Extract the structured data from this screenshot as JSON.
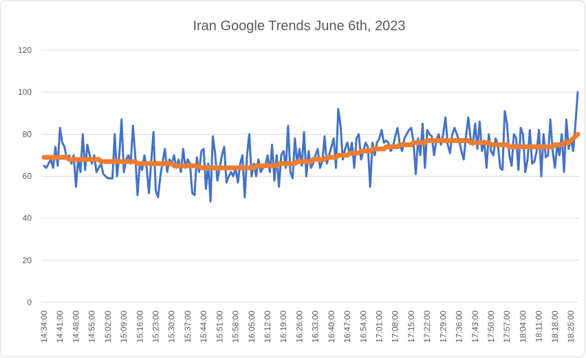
{
  "chart_data": {
    "type": "line",
    "title": "Iran Google Trends June 6th, 2023",
    "categories": [
      "14:34:00",
      null,
      null,
      null,
      null,
      null,
      null,
      "14:41:00",
      null,
      null,
      null,
      null,
      null,
      null,
      "14:48:00",
      null,
      null,
      null,
      null,
      null,
      null,
      "14:55:00",
      null,
      null,
      null,
      null,
      null,
      null,
      "15:02:00",
      null,
      null,
      null,
      null,
      null,
      null,
      "15:09:00",
      null,
      null,
      null,
      null,
      null,
      null,
      "15:16:00",
      null,
      null,
      null,
      null,
      null,
      null,
      "15:23:00",
      null,
      null,
      null,
      null,
      null,
      null,
      "15:30:00",
      null,
      null,
      null,
      null,
      null,
      null,
      "15:37:00",
      null,
      null,
      null,
      null,
      null,
      null,
      "15:44:00",
      null,
      null,
      null,
      null,
      null,
      null,
      "15:51:00",
      null,
      null,
      null,
      null,
      null,
      null,
      "15:58:00",
      null,
      null,
      null,
      null,
      null,
      null,
      "16:05:00",
      null,
      null,
      null,
      null,
      null,
      null,
      "16:12:00",
      null,
      null,
      null,
      null,
      null,
      null,
      "16:19:00",
      null,
      null,
      null,
      null,
      null,
      null,
      "16:26:00",
      null,
      null,
      null,
      null,
      null,
      null,
      "16:33:00",
      null,
      null,
      null,
      null,
      null,
      null,
      "16:40:00",
      null,
      null,
      null,
      null,
      null,
      null,
      "16:47:00",
      null,
      null,
      null,
      null,
      null,
      null,
      "16:54:00",
      null,
      null,
      null,
      null,
      null,
      null,
      "17:01:00",
      null,
      null,
      null,
      null,
      null,
      null,
      "17:08:00",
      null,
      null,
      null,
      null,
      null,
      null,
      "17:15:00",
      null,
      null,
      null,
      null,
      null,
      null,
      "17:22:00",
      null,
      null,
      null,
      null,
      null,
      null,
      "17:29:00",
      null,
      null,
      null,
      null,
      null,
      null,
      "17:36:00",
      null,
      null,
      null,
      null,
      null,
      null,
      "17:43:00",
      null,
      null,
      null,
      null,
      null,
      null,
      "17:50:00",
      null,
      null,
      null,
      null,
      null,
      null,
      "17:57:00",
      null,
      null,
      null,
      null,
      null,
      null,
      "18:04:00",
      null,
      null,
      null,
      null,
      null,
      null,
      "18:11:00",
      null,
      null,
      null,
      null,
      null,
      null,
      "18:18:00",
      null,
      null,
      null,
      null,
      null,
      null,
      "18:25:00",
      null,
      null,
      null
    ],
    "series": [
      {
        "color": "#4472c4",
        "width": 3,
        "values": [
          65,
          64,
          66,
          68,
          64,
          74,
          65,
          83,
          76,
          74,
          68,
          70,
          66,
          70,
          55,
          68,
          62,
          80,
          63,
          75,
          70,
          66,
          70,
          62,
          64,
          66,
          61,
          60,
          59,
          59,
          59,
          80,
          60,
          70,
          87,
          62,
          68,
          70,
          66,
          84,
          70,
          51,
          66,
          63,
          70,
          64,
          52,
          67,
          81,
          53,
          50,
          60,
          67,
          73,
          62,
          68,
          66,
          70,
          64,
          68,
          62,
          73,
          64,
          68,
          66,
          52,
          51,
          69,
          62,
          72,
          73,
          54,
          66,
          48,
          79,
          71,
          58,
          64,
          70,
          74,
          57,
          60,
          62,
          60,
          64,
          57,
          66,
          70,
          50,
          70,
          80,
          60,
          66,
          60,
          68,
          62,
          64,
          65,
          70,
          62,
          75,
          58,
          70,
          55,
          70,
          72,
          64,
          84,
          62,
          59,
          78,
          66,
          73,
          65,
          81,
          60,
          72,
          64,
          66,
          70,
          73,
          64,
          67,
          79,
          66,
          70,
          74,
          78,
          64,
          92,
          84,
          68,
          73,
          76,
          70,
          76,
          64,
          78,
          80,
          68,
          72,
          76,
          74,
          55,
          76,
          70,
          76,
          78,
          82,
          76,
          77,
          76,
          72,
          74,
          79,
          83,
          75,
          72,
          78,
          80,
          82,
          83,
          76,
          61,
          78,
          70,
          85,
          64,
          82,
          80,
          79,
          70,
          77,
          80,
          75,
          80,
          88,
          75,
          71,
          80,
          83,
          80,
          77,
          72,
          68,
          79,
          88,
          78,
          75,
          85,
          73,
          86,
          72,
          77,
          64,
          80,
          72,
          70,
          78,
          75,
          64,
          63,
          91,
          85,
          70,
          65,
          80,
          78,
          63,
          83,
          80,
          62,
          68,
          82,
          66,
          67,
          72,
          82,
          60,
          80,
          69,
          70,
          87,
          72,
          64,
          75,
          70,
          80,
          62,
          87,
          73,
          78,
          72,
          85,
          100
        ]
      },
      {
        "color": "#ed7d31",
        "width": 7,
        "values": [
          69,
          69,
          69,
          69,
          69,
          69,
          69,
          69,
          69,
          69,
          69,
          68,
          68,
          68,
          68,
          68,
          68,
          68,
          68,
          68,
          68,
          68,
          68,
          68,
          68,
          67,
          67,
          67,
          67,
          67,
          67,
          67,
          67,
          67,
          67,
          67,
          67,
          67,
          67,
          67,
          67,
          66,
          66,
          66,
          66,
          66,
          66,
          66,
          66,
          66,
          66,
          66,
          66,
          66,
          66,
          66,
          66,
          65,
          65,
          65,
          65,
          65,
          65,
          65,
          65,
          65,
          65,
          65,
          65,
          64,
          64,
          64,
          64,
          64,
          64,
          64,
          64,
          64,
          64,
          64,
          64,
          64,
          64,
          64,
          64,
          64,
          64,
          64,
          64,
          64,
          64,
          64,
          64,
          65,
          65,
          65,
          65,
          65,
          65,
          65,
          65,
          65,
          65,
          66,
          66,
          66,
          66,
          66,
          66,
          66,
          66,
          67,
          67,
          67,
          67,
          67,
          67,
          67,
          68,
          68,
          68,
          68,
          68,
          68,
          69,
          69,
          69,
          69,
          69,
          70,
          70,
          70,
          70,
          70,
          71,
          71,
          71,
          71,
          71,
          72,
          72,
          72,
          72,
          72,
          73,
          73,
          73,
          73,
          73,
          73,
          74,
          74,
          74,
          74,
          74,
          74,
          75,
          75,
          75,
          75,
          75,
          75,
          76,
          76,
          76,
          76,
          76,
          76,
          77,
          77,
          77,
          77,
          77,
          77,
          77,
          77,
          77,
          77,
          77,
          77,
          77,
          77,
          77,
          77,
          77,
          77,
          77,
          76,
          76,
          76,
          76,
          76,
          76,
          76,
          76,
          76,
          75,
          75,
          75,
          75,
          75,
          75,
          75,
          75,
          74,
          74,
          74,
          74,
          74,
          74,
          74,
          74,
          74,
          74,
          74,
          74,
          74,
          74,
          74,
          74,
          74,
          74,
          74,
          74,
          75,
          75,
          75,
          75,
          76,
          76,
          76,
          77,
          78,
          79,
          80
        ]
      }
    ],
    "ylim": [
      0,
      120
    ],
    "yticks": [
      0,
      20,
      40,
      60,
      80,
      100,
      120
    ],
    "grid": true
  }
}
